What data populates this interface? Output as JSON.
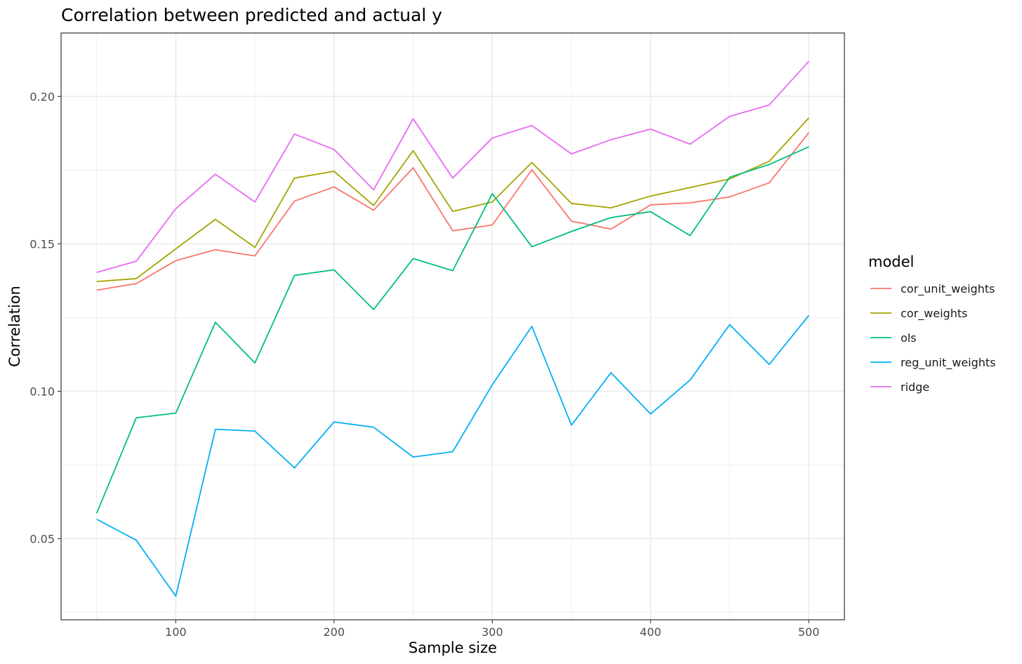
{
  "chart_data": {
    "type": "line",
    "title": "Correlation between predicted and actual y",
    "xlabel": "Sample size",
    "ylabel": "Correlation",
    "xlim": [
      27.5,
      522.5
    ],
    "ylim": [
      0.0225,
      0.2215
    ],
    "x_ticks": [
      100,
      200,
      300,
      400,
      500
    ],
    "x_tick_labels": [
      "100",
      "200",
      "300",
      "400",
      "500"
    ],
    "x_minor_ticks": [
      50,
      150,
      250,
      350,
      450
    ],
    "y_ticks": [
      0.05,
      0.1,
      0.15,
      0.2
    ],
    "y_tick_labels": [
      "0.05",
      "0.10",
      "0.15",
      "0.20"
    ],
    "y_minor_ticks": [
      0.025,
      0.075,
      0.125,
      0.175
    ],
    "grid": true,
    "legend_title": "model",
    "legend_position": "right",
    "x": [
      50,
      75,
      100,
      125,
      150,
      175,
      200,
      225,
      250,
      275,
      300,
      325,
      350,
      375,
      400,
      425,
      450,
      475,
      500
    ],
    "series": [
      {
        "name": "cor_unit_weights",
        "color": "#F8766D",
        "values": [
          0.1343,
          0.1365,
          0.1443,
          0.148,
          0.1459,
          0.1645,
          0.1693,
          0.1614,
          0.1758,
          0.1544,
          0.1564,
          0.1751,
          0.1577,
          0.155,
          0.1632,
          0.1639,
          0.1659,
          0.1707,
          0.1877
        ]
      },
      {
        "name": "cor_weights",
        "color": "#A3A500",
        "values": [
          0.1372,
          0.1382,
          0.1483,
          0.1583,
          0.1488,
          0.1723,
          0.1746,
          0.163,
          0.1816,
          0.161,
          0.1642,
          0.1776,
          0.1637,
          0.1622,
          0.1662,
          0.1691,
          0.172,
          0.178,
          0.1927
        ]
      },
      {
        "name": "ols",
        "color": "#00BF7D",
        "values": [
          0.0586,
          0.091,
          0.0926,
          0.1234,
          0.1096,
          0.1393,
          0.1412,
          0.1277,
          0.145,
          0.1409,
          0.167,
          0.149,
          0.1542,
          0.1589,
          0.1609,
          0.1528,
          0.1726,
          0.1769,
          0.1829
        ]
      },
      {
        "name": "reg_unit_weights",
        "color": "#00B0F6",
        "values": [
          0.0566,
          0.0495,
          0.0305,
          0.0871,
          0.0865,
          0.074,
          0.0896,
          0.0878,
          0.0777,
          0.0795,
          0.1022,
          0.122,
          0.0885,
          0.1063,
          0.0923,
          0.1038,
          0.1226,
          0.1091,
          0.1257
        ]
      },
      {
        "name": "ridge",
        "color": "#E76BF3",
        "values": [
          0.1403,
          0.1441,
          0.1619,
          0.1736,
          0.1642,
          0.1872,
          0.182,
          0.1683,
          0.1924,
          0.1723,
          0.1859,
          0.1901,
          0.1805,
          0.1853,
          0.1889,
          0.1838,
          0.1932,
          0.1971,
          0.2119
        ]
      }
    ]
  }
}
